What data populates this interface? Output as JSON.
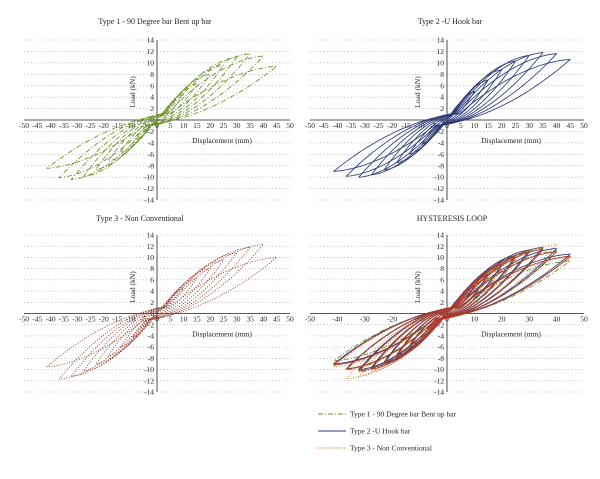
{
  "figure": {
    "legend": [
      {
        "label": "Type 1 - 90 Degree bar Bent up bar",
        "color": "#6b8e23",
        "dash": "dashdot"
      },
      {
        "label": "Type 2 -U Hook bar",
        "color": "#2e3a78",
        "dash": "solid"
      },
      {
        "label": "Type 3 - Non Conventional",
        "color": "#c46a2a",
        "dash": "dotted"
      }
    ]
  },
  "chart_data": [
    {
      "type": "line",
      "title": "Type 1 - 90 Degree bar Bent up bar",
      "xlabel": "Displacement (mm)",
      "ylabel": "Load (kN)",
      "xlim": [
        -50,
        50
      ],
      "ylim": [
        -14,
        14
      ],
      "x_ticks": [
        -50,
        -45,
        -40,
        -35,
        -30,
        -25,
        -20,
        -15,
        -10,
        -5,
        0,
        5,
        10,
        15,
        20,
        25,
        30,
        35,
        40,
        45,
        50
      ],
      "y_ticks": [
        -14,
        -12,
        -10,
        -8,
        -6,
        -4,
        -2,
        0,
        2,
        4,
        6,
        8,
        10,
        12,
        14
      ],
      "grid": "horizontal-dotted",
      "series": [
        {
          "name": "Type 1 - 90 Degree bar Bent up bar",
          "color": "#6b8e23",
          "style": "dashdot",
          "cycles": [
            [
              5,
              2.5
            ],
            [
              10,
              4.5
            ],
            [
              15,
              6.3
            ],
            [
              20,
              8
            ],
            [
              25,
              9.6
            ],
            [
              30,
              11
            ],
            [
              35,
              11.6
            ],
            [
              40,
              11.2
            ],
            [
              45,
              9.4
            ]
          ],
          "neg_peak_scale": 0.9
        }
      ]
    },
    {
      "type": "line",
      "title": "Type 2 -U Hook bar",
      "xlabel": "Displacement (mm)",
      "ylabel": "Load (kN)",
      "xlim": [
        -50,
        50
      ],
      "ylim": [
        -14,
        14
      ],
      "x_ticks": [
        -50,
        -45,
        -40,
        -35,
        -30,
        -25,
        -20,
        -15,
        -10,
        -5,
        0,
        5,
        10,
        15,
        20,
        25,
        30,
        35,
        40,
        45,
        50
      ],
      "y_ticks": [
        -14,
        -12,
        -10,
        -8,
        -6,
        -4,
        -2,
        0,
        2,
        4,
        6,
        8,
        10,
        12,
        14
      ],
      "grid": "horizontal-dotted",
      "series": [
        {
          "name": "Type 2 -U Hook bar",
          "color": "#2e3a78",
          "style": "solid",
          "cycles": [
            [
              5,
              3
            ],
            [
              10,
              5
            ],
            [
              15,
              7
            ],
            [
              20,
              8.8
            ],
            [
              25,
              10.3
            ],
            [
              30,
              11.3
            ],
            [
              35,
              11.8
            ],
            [
              40,
              11.6
            ],
            [
              45,
              10.6
            ]
          ],
          "neg_peak_scale": 0.85
        }
      ]
    },
    {
      "type": "line",
      "title": "Type 3 - Non Conventional",
      "xlabel": "Displacement (mm)",
      "ylabel": "Load (kN)",
      "xlim": [
        -50,
        50
      ],
      "ylim": [
        -14,
        14
      ],
      "x_ticks": [
        -50,
        -45,
        -40,
        -35,
        -30,
        -25,
        -20,
        -15,
        -10,
        -5,
        0,
        5,
        10,
        15,
        20,
        25,
        30,
        35,
        40,
        45,
        50
      ],
      "y_ticks": [
        -14,
        -12,
        -10,
        -8,
        -6,
        -4,
        -2,
        0,
        2,
        4,
        6,
        8,
        10,
        12,
        14
      ],
      "grid": "horizontal-dotted",
      "series": [
        {
          "name": "Type 3 - Non Conventional",
          "color": "#8b2d20",
          "style": "dotted",
          "cycles": [
            [
              5,
              2.5
            ],
            [
              10,
              4.5
            ],
            [
              15,
              6.3
            ],
            [
              20,
              8
            ],
            [
              25,
              9.5
            ],
            [
              30,
              10.8
            ],
            [
              35,
              11.8
            ],
            [
              40,
              12.3
            ],
            [
              45,
              10
            ]
          ],
          "neg_peak_scale": 0.95
        }
      ]
    },
    {
      "type": "line",
      "title": "HYSTERESIS LOOP",
      "xlabel": "Displacement (mm)",
      "ylabel": "Load (kN)",
      "xlim": [
        -50,
        50
      ],
      "ylim": [
        -14,
        14
      ],
      "x_ticks": [
        -50,
        -40,
        -30,
        -20,
        -10,
        0,
        10,
        20,
        30,
        40,
        50
      ],
      "y_ticks": [
        -14,
        -12,
        -10,
        -8,
        -6,
        -4,
        -2,
        0,
        2,
        4,
        6,
        8,
        10,
        12,
        14
      ],
      "grid": "horizontal-dotted",
      "series": [
        {
          "name": "Type 1 - 90 Degree bar Bent up bar",
          "color": "#6b8e23",
          "style": "dashdot",
          "cycles": [
            [
              5,
              2.5
            ],
            [
              10,
              4.5
            ],
            [
              15,
              6.3
            ],
            [
              20,
              8
            ],
            [
              25,
              9.6
            ],
            [
              30,
              11
            ],
            [
              35,
              11.6
            ],
            [
              40,
              11.2
            ],
            [
              45,
              9.4
            ]
          ],
          "neg_peak_scale": 0.9
        },
        {
          "name": "Type 2 -U Hook bar",
          "color": "#2e3a78",
          "style": "solid",
          "cycles": [
            [
              5,
              3
            ],
            [
              10,
              5
            ],
            [
              15,
              7
            ],
            [
              20,
              8.8
            ],
            [
              25,
              10.3
            ],
            [
              30,
              11.3
            ],
            [
              35,
              11.8
            ],
            [
              40,
              11.6
            ],
            [
              45,
              10.6
            ]
          ],
          "neg_peak_scale": 0.85
        },
        {
          "name": "Type 3 - Non Conventional",
          "color": "#c46a2a",
          "style": "dotted",
          "cycles": [
            [
              5,
              2.5
            ],
            [
              10,
              4.5
            ],
            [
              15,
              6.3
            ],
            [
              20,
              8
            ],
            [
              25,
              9.5
            ],
            [
              30,
              10.8
            ],
            [
              35,
              11.8
            ],
            [
              40,
              12.3
            ],
            [
              45,
              10
            ]
          ],
          "neg_peak_scale": 0.95
        },
        {
          "name": "",
          "color": "#b03a2e",
          "style": "solid",
          "cycles": [
            [
              5,
              2.8
            ],
            [
              10,
              4.8
            ],
            [
              15,
              6.8
            ],
            [
              20,
              8.6
            ],
            [
              25,
              10
            ],
            [
              30,
              11
            ],
            [
              35,
              11.4
            ],
            [
              40,
              11
            ],
            [
              45,
              10.2
            ]
          ],
          "neg_peak_scale": 0.9
        }
      ]
    }
  ]
}
